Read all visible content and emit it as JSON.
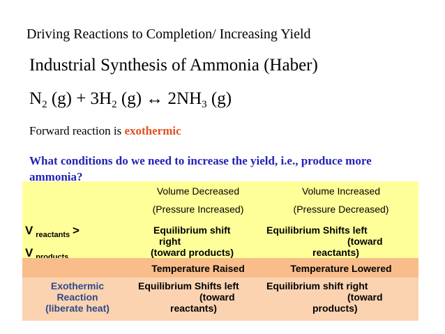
{
  "header": {
    "title": "Driving Reactions to Completion/ Increasing Yield"
  },
  "heading": "Industrial Synthesis of Ammonia (Haber)",
  "equation": [
    "N",
    "2",
    " (g) + 3H",
    "2",
    " (g) ↔ 2NH",
    "3",
    " (g)"
  ],
  "note": {
    "text": "Forward reaction is ",
    "emphasis": "exothermic"
  },
  "question": "What conditions do we need to increase the yield, i.e., produce more ammonia?",
  "table": {
    "pressure": {
      "headers": [
        [
          "Volume Decreased",
          "Volume Increased"
        ],
        [
          "(Pressure Increased)",
          "(Pressure Decreased)"
        ]
      ],
      "row_label": [
        "V",
        "reactants",
        ">",
        "V",
        "products"
      ],
      "cells": [
        [
          "Equilibrium shift",
          "right",
          "(toward products)"
        ],
        [
          "Equilibrium Shifts left",
          "(toward",
          "reactants)"
        ]
      ]
    },
    "temperature": {
      "headers": [
        "Temperature Raised",
        "Temperature Lowered"
      ],
      "row_label": [
        "Exothermic",
        "Reaction",
        "(liberate heat)"
      ],
      "cells": [
        [
          "Equilibrium Shifts left",
          "(toward",
          "reactants)"
        ],
        [
          "Equilibrium shift right",
          "(toward",
          "products)"
        ]
      ]
    }
  }
}
